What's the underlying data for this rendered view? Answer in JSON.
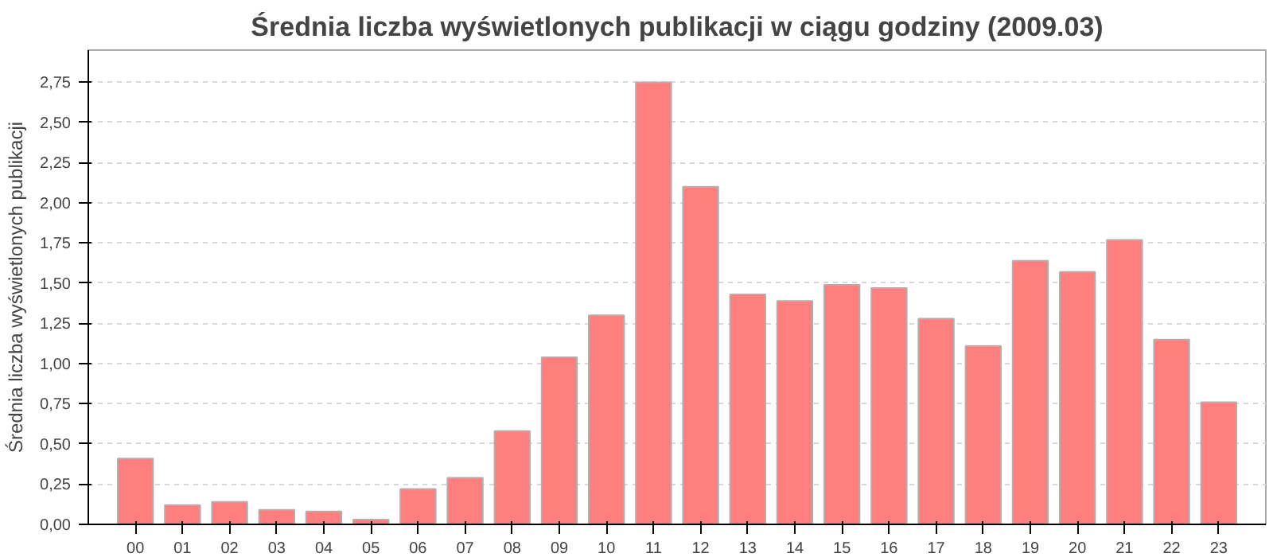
{
  "chart_data": {
    "type": "bar",
    "title": "Średnia liczba wyświetlonych publikacji w ciągu godziny (2009.03)",
    "ylabel": "Średnia liczba wyświetlonych publikacji",
    "categories": [
      "00",
      "01",
      "02",
      "03",
      "04",
      "05",
      "06",
      "07",
      "08",
      "09",
      "10",
      "11",
      "12",
      "13",
      "14",
      "15",
      "16",
      "17",
      "18",
      "19",
      "20",
      "21",
      "22",
      "23"
    ],
    "values": [
      0.41,
      0.12,
      0.14,
      0.09,
      0.08,
      0.03,
      0.22,
      0.29,
      0.58,
      1.04,
      1.3,
      2.75,
      2.1,
      1.43,
      1.39,
      1.49,
      1.47,
      1.28,
      1.11,
      1.64,
      1.57,
      1.77,
      1.15,
      0.76
    ],
    "color": "#ff7f7f",
    "ylim": [
      0,
      2.95
    ],
    "yticks": [
      {
        "value": 0,
        "label": "0,00"
      },
      {
        "value": 0.25,
        "label": "0,25"
      },
      {
        "value": 0.5,
        "label": "0,50"
      },
      {
        "value": 0.75,
        "label": "0,75"
      },
      {
        "value": 1,
        "label": "1,00"
      },
      {
        "value": 1.25,
        "label": "1,25"
      },
      {
        "value": 1.5,
        "label": "1,50"
      },
      {
        "value": 1.75,
        "label": "1,75"
      },
      {
        "value": 2,
        "label": "2,00"
      },
      {
        "value": 2.25,
        "label": "2,25"
      },
      {
        "value": 2.5,
        "label": "2,50"
      },
      {
        "value": 2.75,
        "label": "2,75"
      }
    ],
    "grid": "y"
  }
}
